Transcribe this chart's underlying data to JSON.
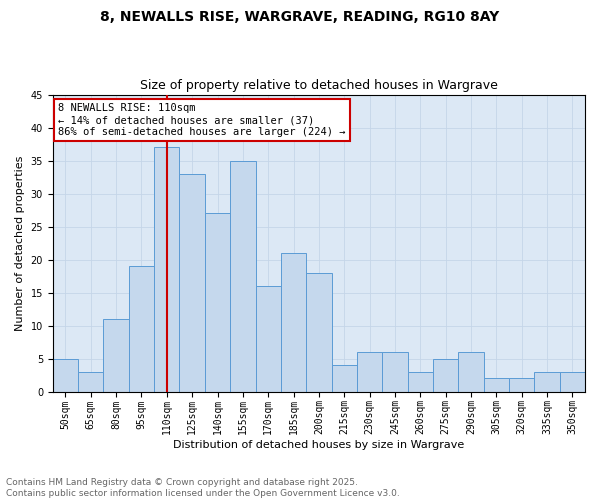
{
  "title1": "8, NEWALLS RISE, WARGRAVE, READING, RG10 8AY",
  "title2": "Size of property relative to detached houses in Wargrave",
  "xlabel": "Distribution of detached houses by size in Wargrave",
  "ylabel": "Number of detached properties",
  "categories": [
    "50sqm",
    "65sqm",
    "80sqm",
    "95sqm",
    "110sqm",
    "125sqm",
    "140sqm",
    "155sqm",
    "170sqm",
    "185sqm",
    "200sqm",
    "215sqm",
    "230sqm",
    "245sqm",
    "260sqm",
    "275sqm",
    "290sqm",
    "305sqm",
    "320sqm",
    "335sqm",
    "350sqm"
  ],
  "values": [
    5,
    3,
    11,
    19,
    37,
    33,
    27,
    35,
    16,
    21,
    18,
    4,
    6,
    6,
    3,
    5,
    6,
    2,
    2,
    3,
    3
  ],
  "bar_color": "#c5d8ed",
  "bar_edge_color": "#5b9bd5",
  "bar_width": 1.0,
  "vline_x_idx": 4,
  "vline_color": "#cc0000",
  "annotation_text": "8 NEWALLS RISE: 110sqm\n← 14% of detached houses are smaller (37)\n86% of semi-detached houses are larger (224) →",
  "annotation_box_color": "#ffffff",
  "annotation_box_edge_color": "#cc0000",
  "ylim": [
    0,
    45
  ],
  "yticks": [
    0,
    5,
    10,
    15,
    20,
    25,
    30,
    35,
    40,
    45
  ],
  "grid_color": "#c5d5e8",
  "bg_color": "#dce8f5",
  "footer_text": "Contains HM Land Registry data © Crown copyright and database right 2025.\nContains public sector information licensed under the Open Government Licence v3.0.",
  "title_fontsize": 10,
  "subtitle_fontsize": 9,
  "axis_label_fontsize": 8,
  "tick_fontsize": 7,
  "annotation_fontsize": 7.5,
  "footer_fontsize": 6.5
}
